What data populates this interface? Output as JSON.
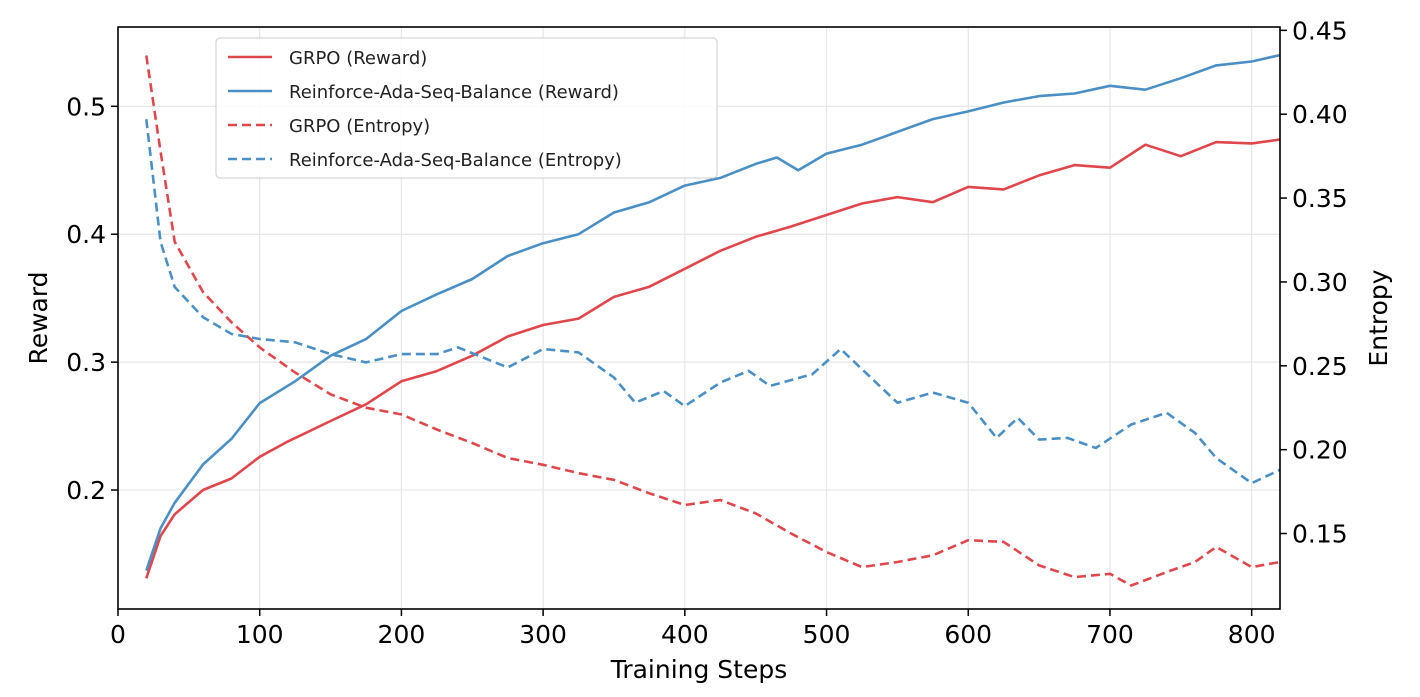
{
  "chart_data": {
    "type": "line",
    "xlabel": "Training Steps",
    "ylabel": "Reward",
    "y2label": "Entropy",
    "xlim": [
      0,
      820
    ],
    "ylim": [
      0.107,
      0.562
    ],
    "y2lim": [
      0.105,
      0.452
    ],
    "xticks": [
      "0",
      "100",
      "200",
      "300",
      "400",
      "500",
      "600",
      "700",
      "800"
    ],
    "yticks": [
      "0.2",
      "0.3",
      "0.4",
      "0.5"
    ],
    "y2ticks": [
      "0.15",
      "0.20",
      "0.25",
      "0.30",
      "0.35",
      "0.40",
      "0.45"
    ],
    "grid": true,
    "legend_position": "upper-left",
    "colors": {
      "grpo": "#e0474c",
      "reinforce": "#4a90c4"
    },
    "series": [
      {
        "name": "GRPO (Reward)",
        "axis": "left",
        "style": "solid",
        "color": "#e0474c",
        "x": [
          20,
          30,
          40,
          60,
          80,
          100,
          120,
          150,
          175,
          200,
          225,
          250,
          275,
          300,
          325,
          350,
          375,
          400,
          425,
          450,
          475,
          500,
          525,
          550,
          575,
          600,
          625,
          650,
          675,
          700,
          725,
          750,
          775,
          800,
          820
        ],
        "y": [
          0.131,
          0.164,
          0.181,
          0.2,
          0.209,
          0.226,
          0.238,
          0.254,
          0.267,
          0.285,
          0.293,
          0.305,
          0.32,
          0.329,
          0.334,
          0.351,
          0.359,
          0.373,
          0.387,
          0.398,
          0.406,
          0.415,
          0.424,
          0.429,
          0.425,
          0.437,
          0.435,
          0.446,
          0.454,
          0.452,
          0.47,
          0.461,
          0.472,
          0.471,
          0.474
        ]
      },
      {
        "name": "Reinforce-Ada-Seq-Balance (Reward)",
        "axis": "left",
        "style": "solid",
        "color": "#4a90c4",
        "x": [
          20,
          30,
          40,
          60,
          80,
          100,
          125,
          150,
          175,
          200,
          225,
          250,
          275,
          300,
          325,
          350,
          375,
          400,
          425,
          450,
          465,
          480,
          500,
          525,
          550,
          575,
          600,
          625,
          650,
          675,
          700,
          725,
          750,
          775,
          800,
          820
        ],
        "y": [
          0.137,
          0.17,
          0.19,
          0.22,
          0.24,
          0.268,
          0.285,
          0.305,
          0.318,
          0.34,
          0.353,
          0.365,
          0.383,
          0.393,
          0.4,
          0.417,
          0.425,
          0.438,
          0.444,
          0.455,
          0.46,
          0.45,
          0.463,
          0.47,
          0.48,
          0.49,
          0.496,
          0.503,
          0.508,
          0.51,
          0.516,
          0.513,
          0.522,
          0.532,
          0.535,
          0.54
        ]
      },
      {
        "name": "GRPO (Entropy)",
        "axis": "right",
        "style": "dashed",
        "color": "#e0474c",
        "x": [
          20,
          30,
          40,
          60,
          80,
          100,
          125,
          150,
          175,
          200,
          225,
          250,
          275,
          300,
          325,
          350,
          375,
          400,
          425,
          450,
          475,
          500,
          525,
          550,
          575,
          600,
          625,
          650,
          675,
          700,
          715,
          740,
          760,
          775,
          800,
          820
        ],
        "y": [
          0.435,
          0.378,
          0.324,
          0.294,
          0.276,
          0.261,
          0.246,
          0.233,
          0.225,
          0.221,
          0.212,
          0.204,
          0.195,
          0.191,
          0.186,
          0.182,
          0.174,
          0.167,
          0.17,
          0.162,
          0.15,
          0.139,
          0.13,
          0.133,
          0.137,
          0.146,
          0.145,
          0.131,
          0.124,
          0.126,
          0.119,
          0.127,
          0.133,
          0.142,
          0.13,
          0.133
        ]
      },
      {
        "name": "Reinforce-Ada-Seq-Balance (Entropy)",
        "axis": "right",
        "style": "dashed",
        "color": "#4a90c4",
        "x": [
          20,
          30,
          40,
          60,
          80,
          100,
          125,
          150,
          175,
          200,
          225,
          240,
          275,
          300,
          325,
          350,
          365,
          385,
          400,
          425,
          445,
          460,
          490,
          510,
          535,
          550,
          575,
          600,
          620,
          635,
          650,
          670,
          690,
          715,
          740,
          760,
          775,
          800,
          820
        ],
        "y": [
          0.397,
          0.324,
          0.297,
          0.279,
          0.269,
          0.266,
          0.264,
          0.257,
          0.252,
          0.257,
          0.257,
          0.261,
          0.249,
          0.26,
          0.258,
          0.243,
          0.228,
          0.235,
          0.226,
          0.24,
          0.247,
          0.238,
          0.245,
          0.26,
          0.24,
          0.228,
          0.234,
          0.228,
          0.207,
          0.219,
          0.206,
          0.207,
          0.201,
          0.215,
          0.222,
          0.21,
          0.195,
          0.18,
          0.188
        ]
      }
    ]
  }
}
